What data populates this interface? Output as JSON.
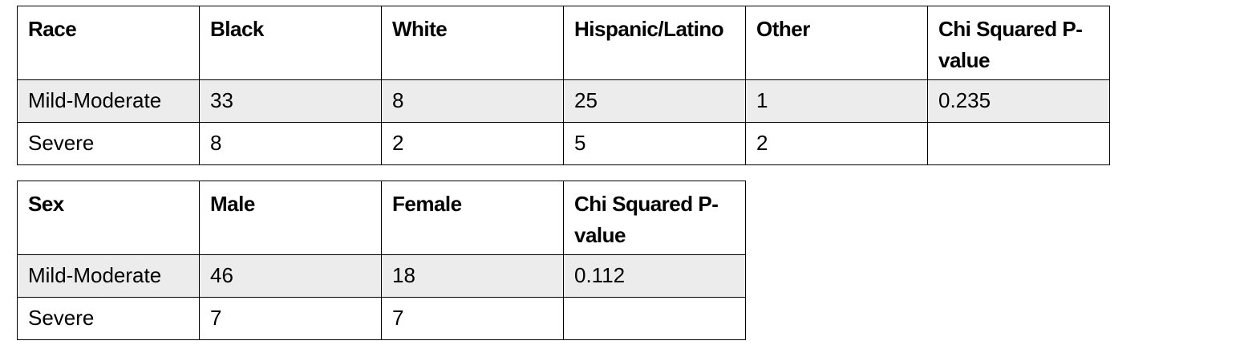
{
  "tables": [
    {
      "header": [
        "Race",
        "Black",
        "White",
        "Hispanic/Latino",
        "Other",
        "Chi Squared P-value"
      ],
      "rows": [
        [
          "Mild-Moderate",
          33,
          8,
          25,
          1,
          0.235
        ],
        [
          "Severe",
          8,
          2,
          5,
          2
        ]
      ]
    },
    {
      "header": [
        "Sex",
        "Male",
        "Female",
        "Chi Squared P-value"
      ],
      "rows": [
        [
          "Mild-Moderate",
          46,
          18,
          0.112
        ],
        [
          "Severe",
          7,
          7
        ]
      ]
    }
  ]
}
